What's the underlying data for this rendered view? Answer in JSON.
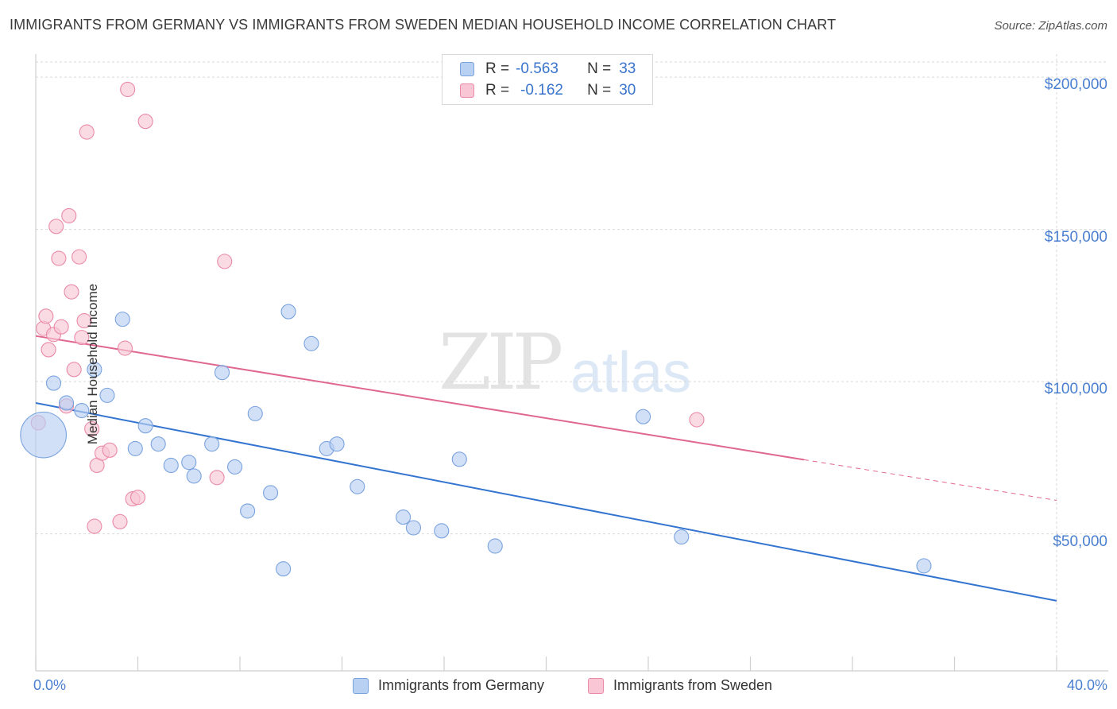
{
  "header": {
    "title": "IMMIGRANTS FROM GERMANY VS IMMIGRANTS FROM SWEDEN MEDIAN HOUSEHOLD INCOME CORRELATION CHART",
    "source": "Source: ZipAtlas.com"
  },
  "watermark": {
    "zip": "ZIP",
    "atlas": "atlas"
  },
  "stats": {
    "germany": {
      "r_label": "R =",
      "r_value": "-0.563",
      "n_label": "N =",
      "n_value": "33"
    },
    "sweden": {
      "r_label": "R =",
      "r_value": "-0.162",
      "n_label": "N =",
      "n_value": "30"
    }
  },
  "legend": {
    "germany": "Immigrants from Germany",
    "sweden": "Immigrants from Sweden"
  },
  "colors": {
    "germany_fill": "#b8d0f2",
    "germany_stroke": "#7aa3de",
    "germany_line": "#3274d0",
    "sweden_fill": "#f8c6d4",
    "sweden_stroke": "#ea8aa8",
    "sweden_line": "#e0678f",
    "grid": "#d9d9d9",
    "axis_text": "#4a7fd0"
  },
  "chart_data": {
    "type": "scatter",
    "ylabel": "Median Household Income",
    "x_tick_labels": [
      "0.0%",
      "40.0%"
    ],
    "y_tick_labels": [
      "$50,000",
      "$100,000",
      "$150,000",
      "$200,000"
    ],
    "y_ticks": [
      50000,
      100000,
      150000,
      200000
    ],
    "xlim": [
      0,
      40
    ],
    "ylim": [
      5000,
      205000
    ],
    "grid": true,
    "legend_position": "bottom",
    "series": [
      {
        "name": "Immigrants from Germany",
        "points": [
          [
            0.3,
            82500
          ],
          [
            0.7,
            99500
          ],
          [
            1.2,
            93000
          ],
          [
            1.8,
            90500
          ],
          [
            2.3,
            104000
          ],
          [
            2.8,
            95500
          ],
          [
            3.4,
            120500
          ],
          [
            3.9,
            78000
          ],
          [
            4.3,
            85500
          ],
          [
            4.8,
            79500
          ],
          [
            5.3,
            72500
          ],
          [
            6.0,
            73500
          ],
          [
            6.2,
            69000
          ],
          [
            6.9,
            79500
          ],
          [
            7.3,
            103000
          ],
          [
            7.8,
            72000
          ],
          [
            8.3,
            57500
          ],
          [
            8.6,
            89500
          ],
          [
            9.2,
            63500
          ],
          [
            9.7,
            38500
          ],
          [
            9.9,
            123000
          ],
          [
            10.8,
            112500
          ],
          [
            11.4,
            78000
          ],
          [
            11.8,
            79500
          ],
          [
            12.6,
            65500
          ],
          [
            14.4,
            55500
          ],
          [
            14.8,
            52000
          ],
          [
            15.9,
            51000
          ],
          [
            16.6,
            74500
          ],
          [
            18.0,
            46000
          ],
          [
            23.8,
            88500
          ],
          [
            25.3,
            49000
          ],
          [
            34.8,
            39500
          ]
        ],
        "sizes": [
          3.2,
          1,
          1,
          1,
          1,
          1,
          1,
          1,
          1,
          1,
          1,
          1,
          1,
          1,
          1,
          1,
          1,
          1,
          1,
          1,
          1,
          1,
          1,
          1,
          1,
          1,
          1,
          1,
          1,
          1,
          1,
          1,
          1
        ],
        "trend": {
          "x": [
            0,
            40
          ],
          "y": [
            93000,
            28000
          ],
          "dash_from_x": null
        }
      },
      {
        "name": "Immigrants from Sweden",
        "points": [
          [
            0.1,
            86500
          ],
          [
            0.3,
            117500
          ],
          [
            0.4,
            121500
          ],
          [
            0.5,
            110500
          ],
          [
            0.7,
            115500
          ],
          [
            0.8,
            151000
          ],
          [
            0.9,
            140500
          ],
          [
            1.0,
            118000
          ],
          [
            1.2,
            92000
          ],
          [
            1.3,
            154500
          ],
          [
            1.4,
            129500
          ],
          [
            1.5,
            104000
          ],
          [
            1.7,
            141000
          ],
          [
            1.8,
            114500
          ],
          [
            1.9,
            120000
          ],
          [
            2.0,
            182000
          ],
          [
            2.2,
            84500
          ],
          [
            2.3,
            52500
          ],
          [
            2.4,
            72500
          ],
          [
            2.6,
            76500
          ],
          [
            2.9,
            77500
          ],
          [
            3.3,
            54000
          ],
          [
            3.5,
            111000
          ],
          [
            3.6,
            196000
          ],
          [
            3.8,
            61500
          ],
          [
            4.0,
            62000
          ],
          [
            4.3,
            185500
          ],
          [
            7.1,
            68500
          ],
          [
            7.4,
            139500
          ],
          [
            25.9,
            87500
          ]
        ],
        "sizes": [
          1,
          1,
          1,
          1,
          1,
          1,
          1,
          1,
          1,
          1,
          1,
          1,
          1,
          1,
          1,
          1,
          1,
          1,
          1,
          1,
          1,
          1,
          1,
          1,
          1,
          1,
          1,
          1,
          1,
          1
        ],
        "trend": {
          "x": [
            0,
            40
          ],
          "y": [
            115000,
            61000
          ],
          "dash_from_x": 30.1
        }
      }
    ]
  }
}
